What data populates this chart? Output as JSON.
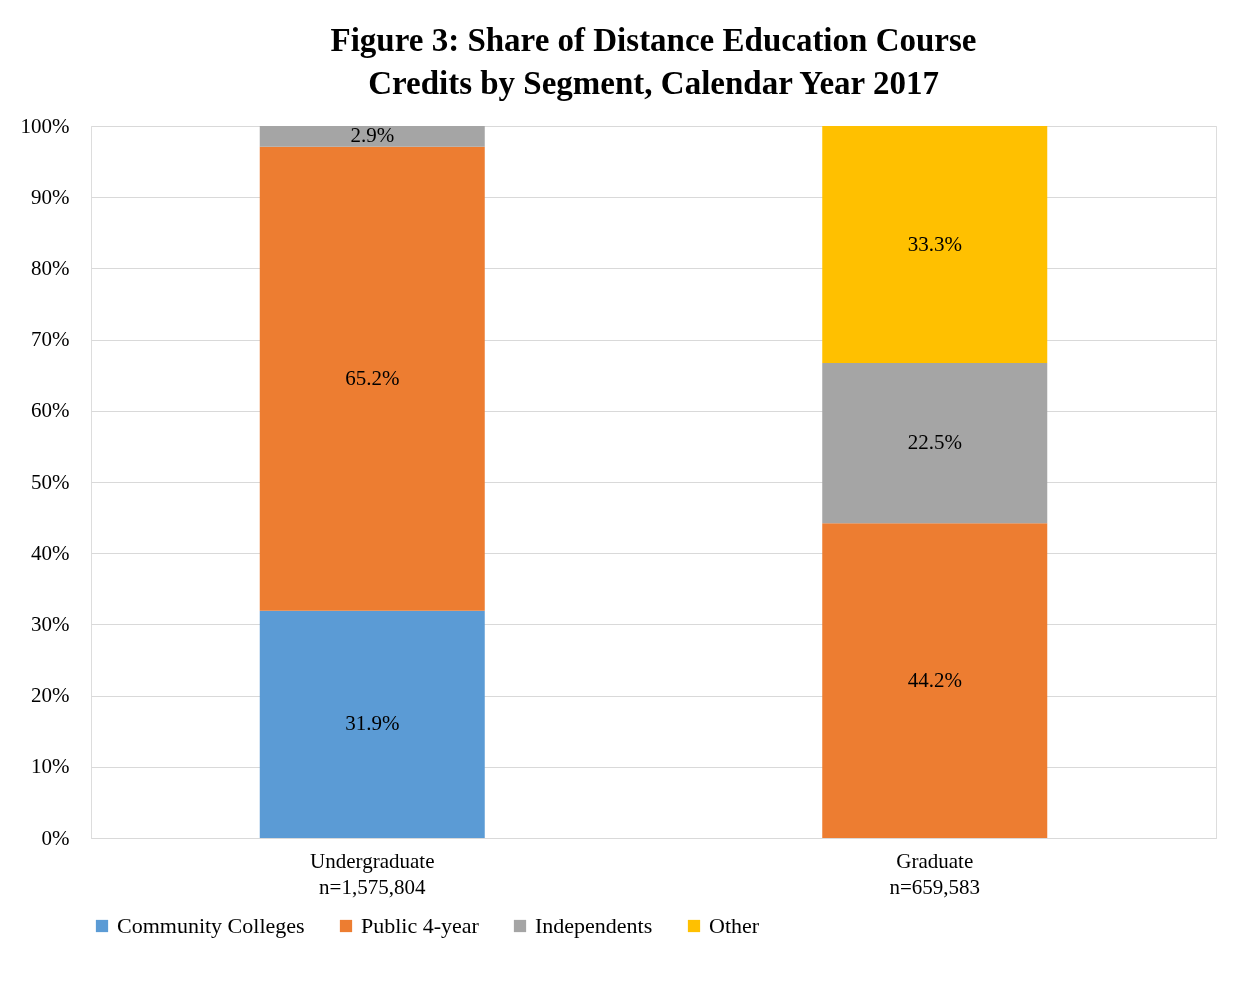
{
  "chart_data": {
    "type": "bar",
    "title": "Figure 3: Share of Distance Education Course Credits by Segment, Calendar Year 2017",
    "categories": [
      "Undergraduate\nn=1,575,804",
      "Graduate\nn=659,583"
    ],
    "stacked": true,
    "series": [
      {
        "name": "Community Colleges",
        "color": "#5b9bd5",
        "values": [
          31.9,
          null
        ],
        "value_labels": [
          "31.9%",
          null
        ]
      },
      {
        "name": "Public 4-year",
        "color": "#ed7d31",
        "values": [
          65.2,
          44.2
        ],
        "value_labels": [
          "65.2%",
          "44.2%"
        ]
      },
      {
        "name": "Independents",
        "color": "#a5a5a5",
        "values": [
          2.9,
          22.5
        ],
        "value_labels": [
          "2.9%",
          "22.5%"
        ]
      },
      {
        "name": "Other",
        "color": "#ffc000",
        "values": [
          null,
          33.3
        ],
        "value_labels": [
          null,
          "33.3%"
        ]
      }
    ],
    "ylim": [
      0,
      100
    ],
    "yticks": [
      {
        "value": 0,
        "label": "0%"
      },
      {
        "value": 10,
        "label": "10%"
      },
      {
        "value": 20,
        "label": "20%"
      },
      {
        "value": 30,
        "label": "30%"
      },
      {
        "value": 40,
        "label": "40%"
      },
      {
        "value": 50,
        "label": "50%"
      },
      {
        "value": 60,
        "label": "60%"
      },
      {
        "value": 70,
        "label": "70%"
      },
      {
        "value": 80,
        "label": "80%"
      },
      {
        "value": 90,
        "label": "90%"
      },
      {
        "value": 100,
        "label": "100%"
      }
    ],
    "grid": "y",
    "legend": "bottom"
  }
}
